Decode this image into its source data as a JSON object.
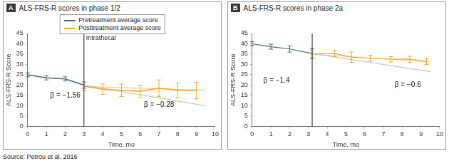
{
  "source": "Source: Petrou et al. 2016",
  "chart_data": [
    {
      "type": "line",
      "panel": "A",
      "title": "ALS-FRS-R scores in phase 1/2",
      "x_label": "Time, mo",
      "y_label": "ALS-FRS-R Score",
      "xlim": [
        0,
        10
      ],
      "xticks": [
        0,
        1,
        2,
        3,
        4,
        5,
        6,
        7,
        8,
        9,
        10
      ],
      "ylim": [
        0,
        45
      ],
      "yticks": [
        0,
        5,
        10,
        15,
        20,
        25,
        30,
        35,
        40,
        45
      ],
      "grid": false,
      "legend": "top",
      "vline": {
        "x": 3,
        "label": "Intrathecal"
      },
      "annotations": [
        {
          "text": "β = −1.56",
          "x": 1.2,
          "y": 15
        },
        {
          "text": "β = −0.28",
          "x": 6.2,
          "y": 10.5
        }
      ],
      "series": [
        {
          "name": "Pretreatment average score",
          "color": "#4b6a74",
          "x": [
            0,
            1,
            2,
            3
          ],
          "values": [
            25,
            23.5,
            23,
            20
          ],
          "errors": [
            1,
            1,
            1,
            1.5
          ]
        },
        {
          "name": "Posttreatment average score",
          "color": "#f0a830",
          "x": [
            3,
            4,
            5,
            6,
            7,
            8,
            9
          ],
          "values": [
            19.5,
            18,
            17.5,
            17,
            18.5,
            17.5,
            17.3
          ],
          "errors": [
            2,
            2.5,
            3,
            3,
            4,
            3.5,
            4
          ]
        },
        {
          "color": "#c8c8c8",
          "x": [
            3,
            9.5
          ],
          "values": [
            20,
            9.9
          ]
        },
        {
          "color": "#f6cf8c",
          "x": [
            3,
            9.5
          ],
          "values": [
            19.3,
            17.5
          ]
        }
      ]
    },
    {
      "type": "line",
      "panel": "B",
      "title": "ALS-FRS-R scores in phase 2a",
      "x_label": "Time, mo",
      "y_label": "ALS-FRS-R Score",
      "xlim": [
        0,
        10
      ],
      "xticks": [
        0,
        1,
        2,
        3,
        4,
        5,
        6,
        7,
        8,
        9,
        10
      ],
      "ylim": [
        0,
        45
      ],
      "yticks": [
        0,
        5,
        10,
        15,
        20,
        25,
        30,
        35,
        40,
        45
      ],
      "grid": false,
      "vline": {
        "x": 3.2
      },
      "annotations": [
        {
          "text": "β = −1.4",
          "x": 0.6,
          "y": 22
        },
        {
          "text": "β = −0.6",
          "x": 7.6,
          "y": 20
        }
      ],
      "series": [
        {
          "color": "#4b6a74",
          "x": [
            0,
            1,
            2,
            3.2
          ],
          "values": [
            40,
            38.6,
            37.5,
            35.3
          ],
          "errors": [
            1,
            1.2,
            1.5,
            2.5
          ]
        },
        {
          "color": "#f0a830",
          "x": [
            3.2,
            4.4,
            5.3,
            6.3,
            7.4,
            8.4,
            9.3
          ],
          "values": [
            35,
            35.3,
            33.5,
            33,
            32.5,
            32.5,
            31.5
          ],
          "errors": [
            2,
            1.5,
            2.5,
            1.5,
            1.3,
            1.5,
            1.5
          ]
        },
        {
          "color": "#c8c8c8",
          "x": [
            3.2,
            9.5
          ],
          "values": [
            35.3,
            26.5
          ]
        },
        {
          "color": "#f6cf8c",
          "x": [
            3.2,
            9.5
          ],
          "values": [
            35,
            31.2
          ]
        }
      ]
    }
  ]
}
